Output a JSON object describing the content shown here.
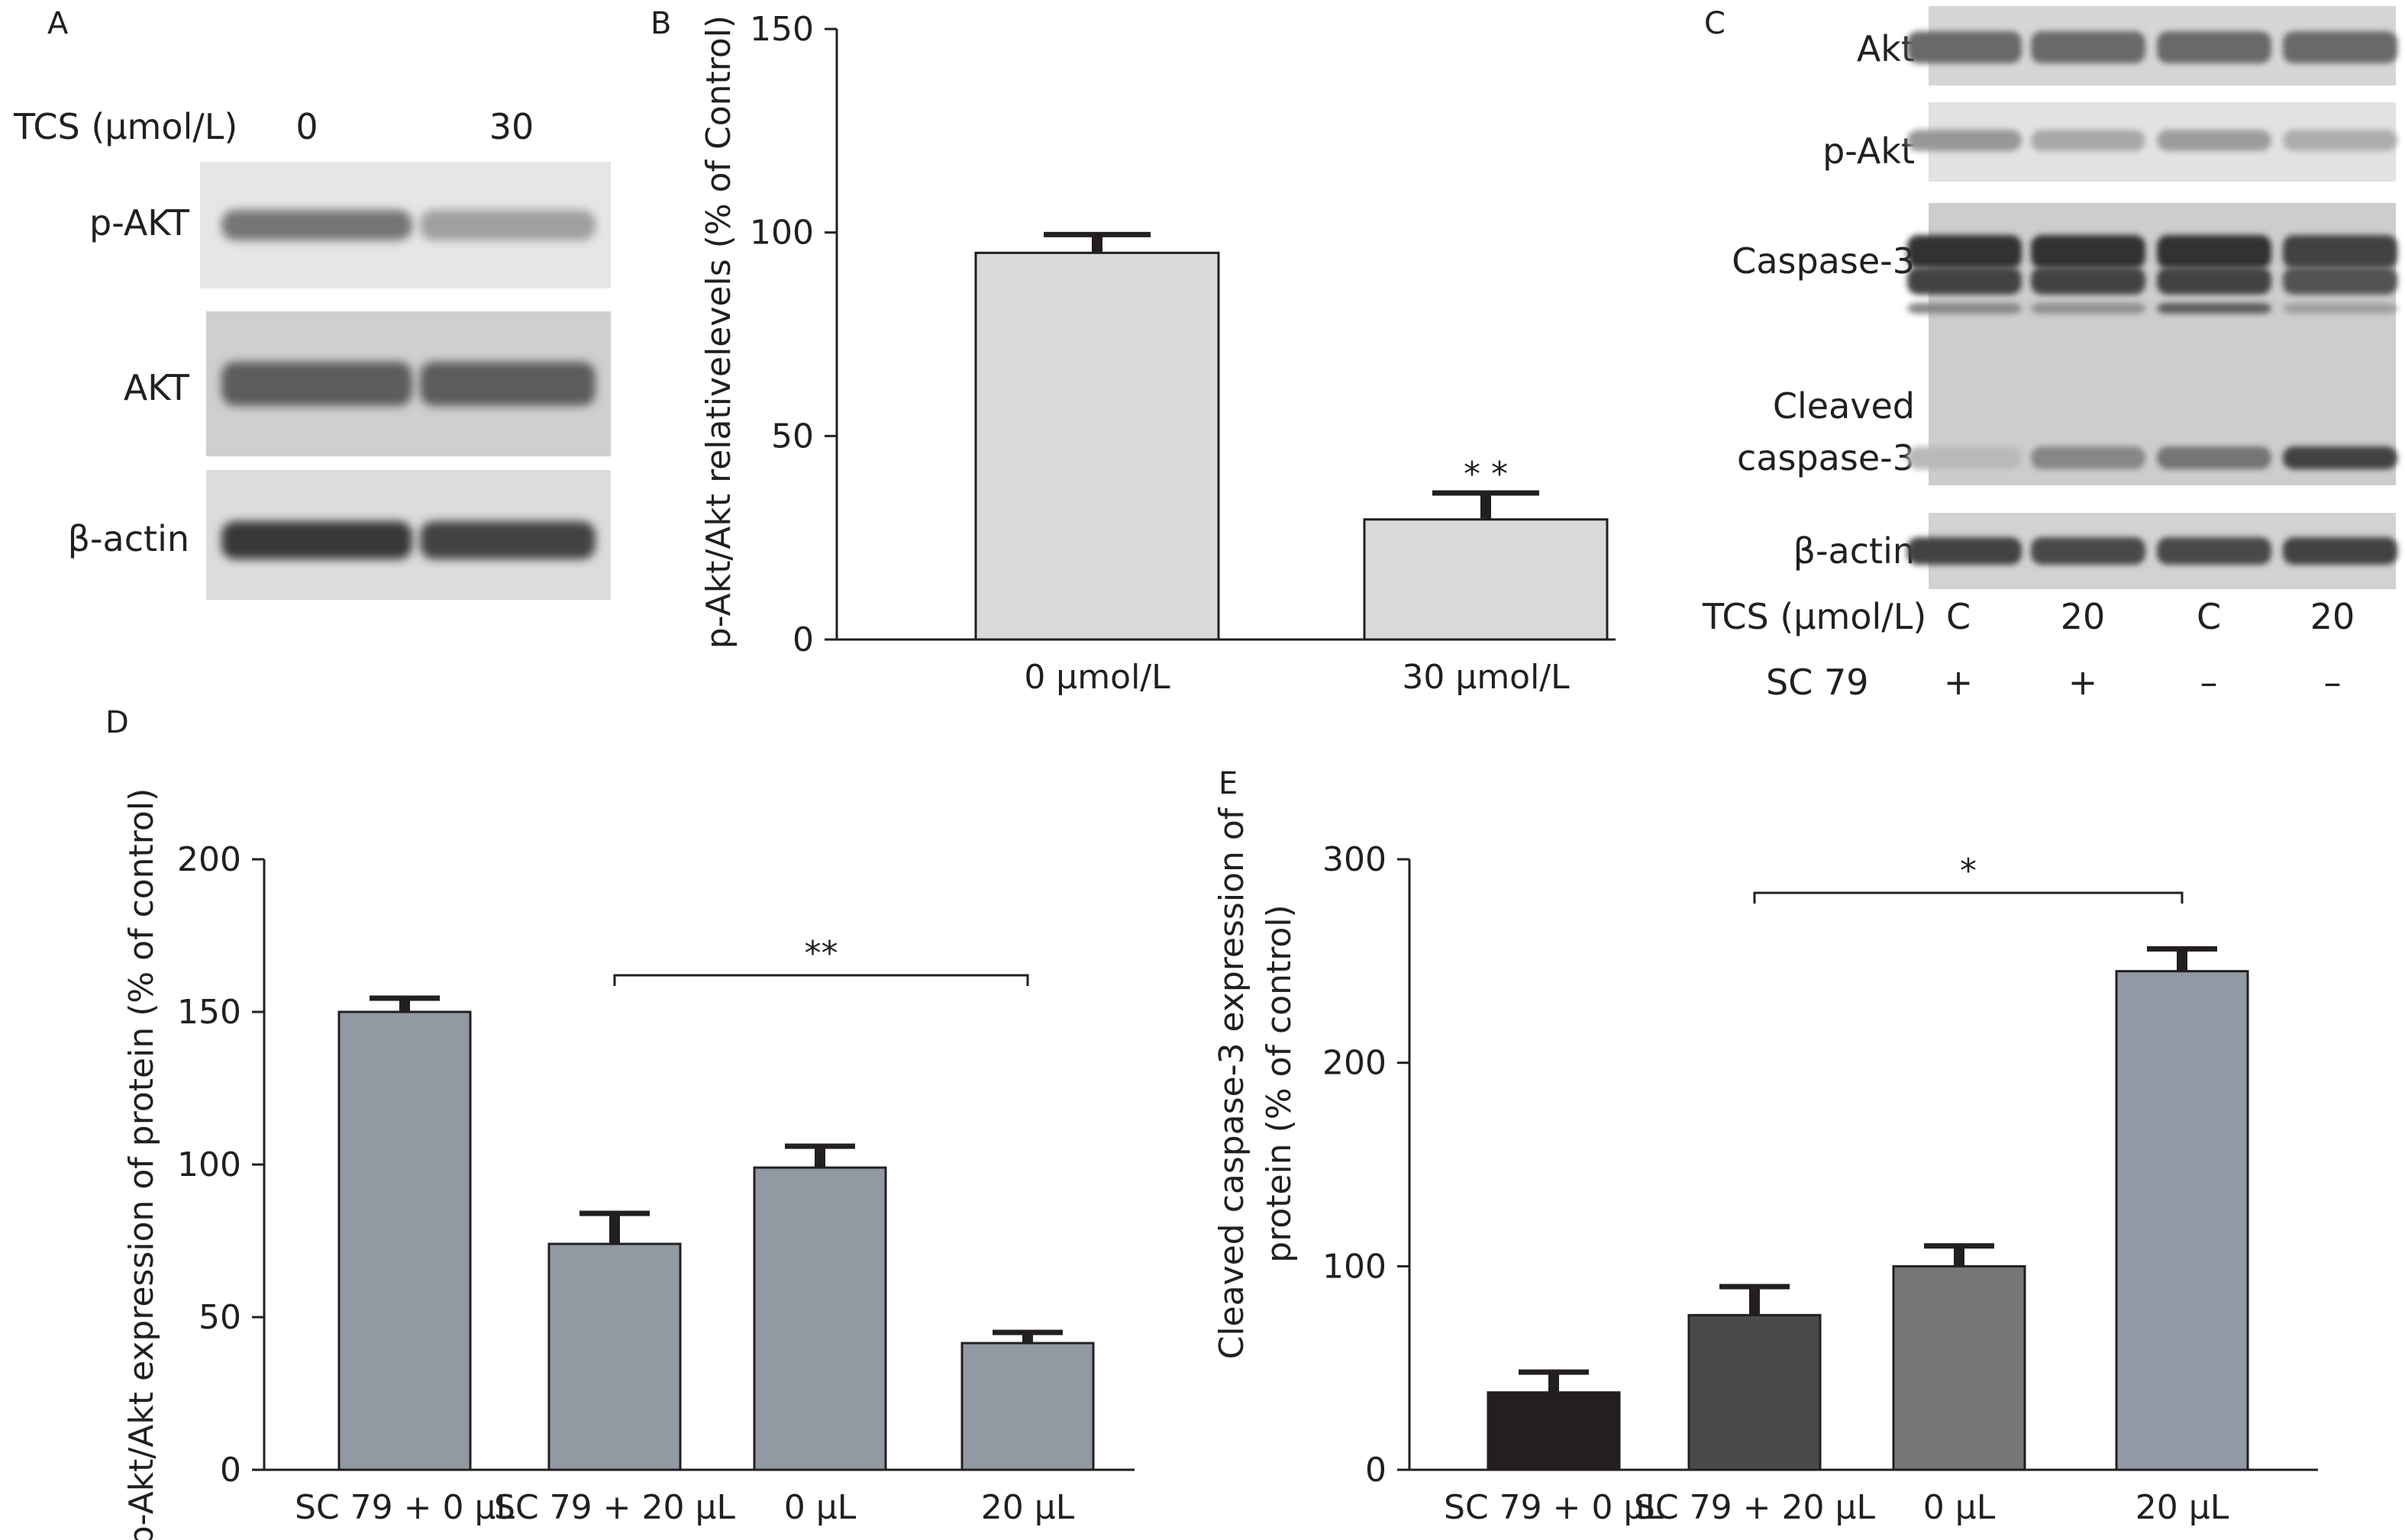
{
  "panel_labels": {
    "a": "A",
    "b": "B",
    "c": "C",
    "d": "D",
    "e": "E"
  },
  "blot_a": {
    "treatment_label": "TCS (μmol/L)",
    "lanes": [
      "0",
      "30"
    ],
    "rows": [
      "p-AKT",
      "AKT",
      "β-actin"
    ],
    "band_intensity": [
      [
        0.55,
        0.3
      ],
      [
        0.7,
        0.7
      ],
      [
        0.9,
        0.85
      ]
    ]
  },
  "blot_c": {
    "rows": [
      "Akt",
      "p-Akt",
      "Caspase-3",
      "Cleaved",
      "caspase-3",
      "β-actin"
    ],
    "treatment_label": "TCS (μmol/L)",
    "treatment_values": [
      "C",
      "20",
      "C",
      "20"
    ],
    "sc79_label": "SC 79",
    "sc79_values": [
      "+",
      "+",
      "–",
      "–"
    ],
    "cleaved_intensity": [
      0.15,
      0.45,
      0.55,
      0.85
    ]
  },
  "chart_data": [
    {
      "type": "bar",
      "panel": "B",
      "categories": [
        "0 μmol/L",
        "30 μmol/L"
      ],
      "values": [
        95,
        29.5
      ],
      "errors": [
        4.5,
        6.5
      ],
      "ylabel": "p-Akt/Akt relativelevels (% of Control)",
      "ylim": [
        0,
        150
      ],
      "yticks": [
        "0",
        "50",
        "100",
        "150"
      ],
      "significance": "* *",
      "bar_color": "#d9d9d9"
    },
    {
      "type": "bar",
      "panel": "D",
      "categories": [
        "SC 79 + 0 μL",
        "SC 79 + 20 μL",
        "0 μL",
        "20 μL"
      ],
      "values": [
        150,
        74,
        99,
        41.5
      ],
      "errors": [
        4.5,
        10,
        7,
        3.5
      ],
      "ylabel": "p-Akt/Akt expression of protein (% of control)",
      "ylim": [
        0,
        200
      ],
      "yticks": [
        "0",
        "50",
        "100",
        "150",
        "200"
      ],
      "significance": "**",
      "bar_colors": [
        "#9199a3",
        "#9199a3",
        "#9199a3",
        "#9199a3"
      ]
    },
    {
      "type": "bar",
      "panel": "E",
      "categories": [
        "SC 79 + 0 μL",
        "SC 79 + 20 μL",
        "0 μL",
        "20 μL"
      ],
      "values": [
        38,
        76,
        100,
        245
      ],
      "errors": [
        10,
        14,
        10,
        11
      ],
      "ylabel_lines": [
        "Cleaved caspase-3 expression of",
        "protein (% of control)"
      ],
      "ylim": [
        0,
        300
      ],
      "yticks": [
        "0",
        "100",
        "200",
        "300"
      ],
      "significance": "*",
      "bar_colors": [
        "#231f20",
        "#4a4a4c",
        "#767676",
        "#9399a4"
      ]
    }
  ]
}
